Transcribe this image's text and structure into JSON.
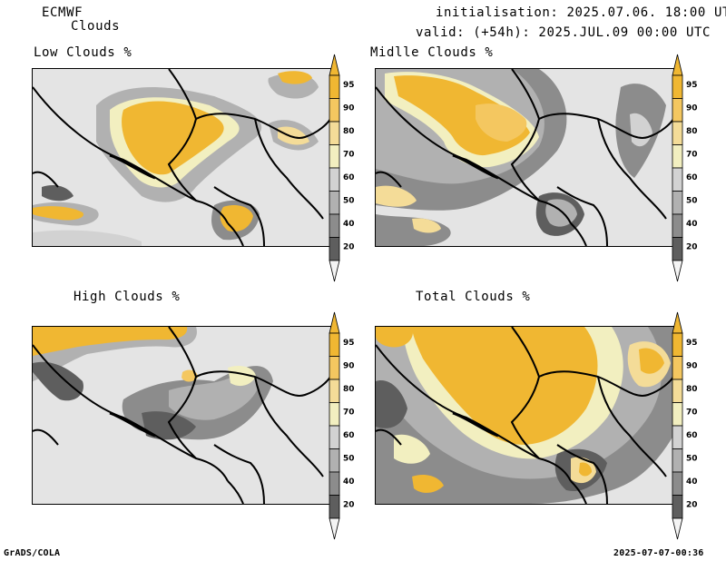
{
  "header": {
    "model": "ECMWF",
    "product": "Clouds",
    "init": "initialisation: 2025.07.06. 18:00 UTC",
    "valid": "valid: (+54h): 2025.JUL.09 00:00 UTC"
  },
  "panels": [
    {
      "title": "Low Clouds %",
      "coverage": "low"
    },
    {
      "title": "Midlle Clouds %",
      "coverage": "mid"
    },
    {
      "title": "High Clouds %",
      "coverage": "high"
    },
    {
      "title": "Total Clouds %",
      "coverage": "total"
    }
  ],
  "colorbar": {
    "labels": [
      "95",
      "90",
      "80",
      "70",
      "60",
      "50",
      "40",
      "20"
    ],
    "colors": [
      "#f0b732",
      "#f4c760",
      "#f4dc98",
      "#f2efc0",
      "#d2d2d2",
      "#b1b1b1",
      "#8c8c8c",
      "#5e5e5e"
    ],
    "top_triangle": "#f0b732",
    "bottom_triangle": "#f4f4f4",
    "map_background": "#e4e4e4"
  },
  "footer": {
    "left": "GrADS/COLA",
    "right": "2025-07-07-00:36"
  }
}
